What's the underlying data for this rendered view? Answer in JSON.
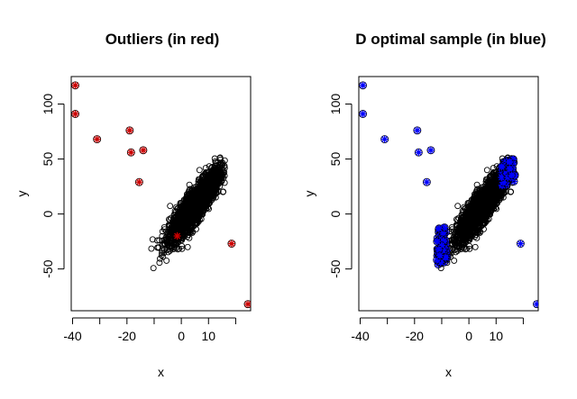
{
  "chart_data": [
    {
      "type": "scatter",
      "title": "Outliers (in red)",
      "xlabel": "x",
      "ylabel": "y",
      "xlim": [
        -40.5,
        25.5
      ],
      "ylim": [
        -88,
        125
      ],
      "xticks": [
        -40,
        -20,
        0,
        10
      ],
      "xtick_labels": [
        "-40",
        "-20",
        "0",
        "10"
      ],
      "xtick_unlabeled": [
        -30,
        -10,
        20
      ],
      "yticks": [
        -50,
        0,
        50,
        100
      ],
      "ytick_labels": [
        "-50",
        "0",
        "50",
        "100"
      ],
      "cloud": {
        "name": "data",
        "color": "#000000",
        "marker": "open-circle",
        "description": "dense elliptical cloud",
        "center": [
          5.0,
          8.0
        ],
        "x_range": [
          -12,
          16
        ],
        "y_range": [
          -52,
          58
        ]
      },
      "highlighted": {
        "name": "outliers",
        "color": "#cc0000",
        "marker": "star",
        "points": [
          [
            -39,
            117
          ],
          [
            -39,
            91
          ],
          [
            -31,
            68
          ],
          [
            -19,
            76
          ],
          [
            -18.5,
            56
          ],
          [
            -14,
            58
          ],
          [
            -15.5,
            29
          ],
          [
            -1.5,
            -20
          ],
          [
            18.5,
            -27
          ],
          [
            24.5,
            -82
          ]
        ]
      }
    },
    {
      "type": "scatter",
      "title": "D optimal sample (in blue)",
      "xlabel": "x",
      "ylabel": "y",
      "xlim": [
        -40.5,
        25.5
      ],
      "ylim": [
        -88,
        125
      ],
      "xticks": [
        -40,
        -20,
        0,
        10
      ],
      "xtick_labels": [
        "-40",
        "-20",
        "0",
        "10"
      ],
      "xtick_unlabeled": [
        -30,
        -10,
        20
      ],
      "yticks": [
        -50,
        0,
        50,
        100
      ],
      "ytick_labels": [
        "-50",
        "0",
        "50",
        "100"
      ],
      "cloud": {
        "name": "data",
        "color": "#000000",
        "marker": "open-circle",
        "description": "dense elliptical cloud",
        "center": [
          5.0,
          8.0
        ],
        "x_range": [
          -12,
          16
        ],
        "y_range": [
          -52,
          58
        ]
      },
      "highlighted": {
        "name": "D optimal sample",
        "color": "#0000ff",
        "marker": "star",
        "points": [
          [
            -39,
            117
          ],
          [
            -39,
            91
          ],
          [
            -31,
            68
          ],
          [
            -19,
            76
          ],
          [
            -18.5,
            56
          ],
          [
            -14,
            58
          ],
          [
            -15.5,
            29
          ],
          [
            19,
            -27
          ],
          [
            25,
            -82
          ]
        ],
        "clusters": [
          {
            "description": "low-x edge of cloud",
            "x_range": [
              -12,
              -8
            ],
            "y_range": [
              -52,
              -5
            ]
          },
          {
            "description": "high-x edge of cloud",
            "x_range": [
              12,
              17
            ],
            "y_range": [
              22,
              55
            ]
          }
        ]
      }
    }
  ]
}
